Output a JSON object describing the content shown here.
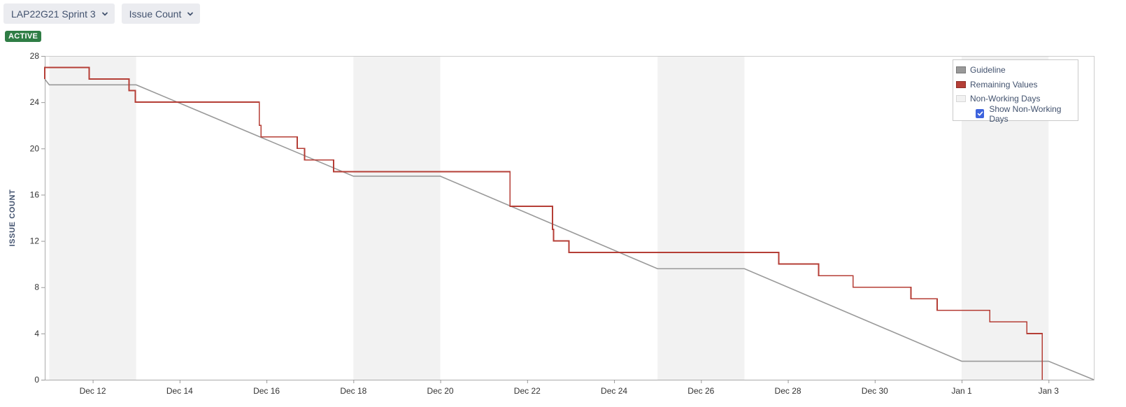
{
  "toolbar": {
    "sprint_selector": "LAP22G21 Sprint 3",
    "metric_selector": "Issue Count"
  },
  "status_badge": "ACTIVE",
  "legend": {
    "guideline": "Guideline",
    "remaining": "Remaining Values",
    "non_working": "Non-Working Days",
    "show_non_working": "Show Non-Working Days",
    "show_non_working_checked": true
  },
  "colors": {
    "guideline": "#999999",
    "remaining": "#b53e36",
    "non_working": "#f2f2f2",
    "badge": "#2f7d45"
  },
  "chart_data": {
    "type": "line",
    "ylabel": "ISSUE COUNT",
    "xlabel": "",
    "ylim": [
      0,
      28
    ],
    "yticks": [
      0,
      4,
      8,
      12,
      16,
      20,
      24,
      28
    ],
    "x_domain": [
      "Dec 10 21:30",
      "Jan 4 01:00"
    ],
    "xticks": [
      {
        "date": "Dec 12 00:00",
        "label": "Dec 12"
      },
      {
        "date": "Dec 14 00:00",
        "label": "Dec 14"
      },
      {
        "date": "Dec 16 00:00",
        "label": "Dec 16"
      },
      {
        "date": "Dec 18 00:00",
        "label": "Dec 18"
      },
      {
        "date": "Dec 20 00:00",
        "label": "Dec 20"
      },
      {
        "date": "Dec 22 00:00",
        "label": "Dec 22"
      },
      {
        "date": "Dec 24 00:00",
        "label": "Dec 24"
      },
      {
        "date": "Dec 26 00:00",
        "label": "Dec 26"
      },
      {
        "date": "Dec 28 00:00",
        "label": "Dec 28"
      },
      {
        "date": "Dec 30 00:00",
        "label": "Dec 30"
      },
      {
        "date": "Jan 1 00:00",
        "label": "Jan 1"
      },
      {
        "date": "Jan 3 00:00",
        "label": "Jan 3"
      }
    ],
    "non_working_days": [
      [
        "Dec 11 00:00",
        "Dec 13 00:00"
      ],
      [
        "Dec 18 00:00",
        "Dec 20 00:00"
      ],
      [
        "Dec 25 00:00",
        "Dec 27 00:00"
      ],
      [
        "Jan 1 00:00",
        "Jan 3 00:00"
      ]
    ],
    "series": [
      {
        "name": "Guideline",
        "points": [
          [
            "Dec 10 21:30",
            26
          ],
          [
            "Dec 11 00:00",
            25.5
          ],
          [
            "Dec 13 00:00",
            25.5
          ],
          [
            "Dec 18 00:00",
            17.6
          ],
          [
            "Dec 20 00:00",
            17.6
          ],
          [
            "Dec 25 00:00",
            9.6
          ],
          [
            "Dec 27 00:00",
            9.6
          ],
          [
            "Jan 1 00:00",
            1.6
          ],
          [
            "Jan 3 00:00",
            1.6
          ],
          [
            "Jan 4 01:00",
            0
          ]
        ]
      },
      {
        "name": "Remaining Values",
        "step": true,
        "points": [
          [
            "Dec 10 21:30",
            26
          ],
          [
            "Dec 10 21:30",
            27
          ],
          [
            "Dec 11 22:00",
            26
          ],
          [
            "Dec 12 20:00",
            25
          ],
          [
            "Dec 12 23:30",
            24
          ],
          [
            "Dec 15 20:00",
            22
          ],
          [
            "Dec 15 21:00",
            21
          ],
          [
            "Dec 16 17:00",
            20
          ],
          [
            "Dec 16 21:00",
            19
          ],
          [
            "Dec 17 13:00",
            18
          ],
          [
            "Dec 21 14:30",
            15
          ],
          [
            "Dec 22 14:00",
            13
          ],
          [
            "Dec 22 14:30",
            12
          ],
          [
            "Dec 22 23:00",
            11
          ],
          [
            "Dec 27 19:00",
            10
          ],
          [
            "Dec 28 17:00",
            9
          ],
          [
            "Dec 29 12:00",
            8
          ],
          [
            "Dec 30 20:00",
            7
          ],
          [
            "Dec 31 10:30",
            6
          ],
          [
            "Jan 1 15:30",
            5
          ],
          [
            "Jan 2 12:00",
            4
          ],
          [
            "Jan 2 20:30",
            0
          ]
        ]
      }
    ]
  }
}
